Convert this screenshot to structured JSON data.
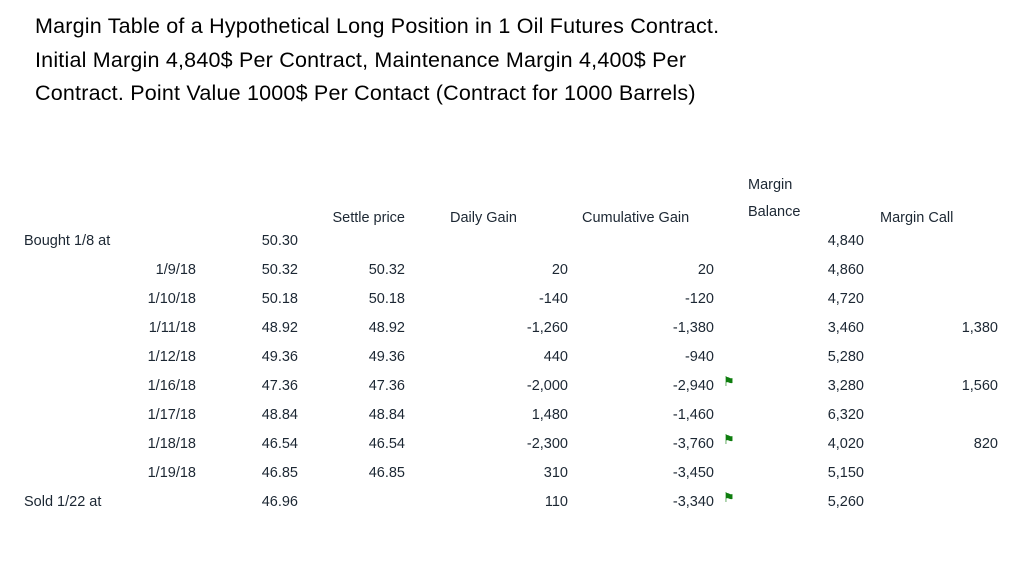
{
  "title": {
    "line1": "Margin Table of a Hypothetical Long Position in 1 Oil Futures Contract.",
    "line2": "Initial Margin 4,840$ Per Contract, Maintenance Margin 4,400$ Per",
    "line3": "Contract. Point Value 1000$ Per Contact (Contract for 1000 Barrels)"
  },
  "table": {
    "headers": {
      "settle_price": "Settle price",
      "daily_gain": "Daily Gain",
      "cumulative_gain": "Cumulative Gain",
      "margin_balance_line1": "Margin",
      "margin_balance_line2": "Balance",
      "margin_call": "Margin Call"
    },
    "rows": [
      {
        "label": "Bought 1/8 at",
        "price": "50.30",
        "settle": "",
        "daily": "",
        "cumulative": "",
        "flag": false,
        "balance": "4,840",
        "call": ""
      },
      {
        "label": "1/9/18",
        "price": "50.32",
        "settle": "50.32",
        "daily": "20",
        "cumulative": "20",
        "flag": false,
        "balance": "4,860",
        "call": ""
      },
      {
        "label": "1/10/18",
        "price": "50.18",
        "settle": "50.18",
        "daily": "-140",
        "cumulative": "-120",
        "flag": false,
        "balance": "4,720",
        "call": ""
      },
      {
        "label": "1/11/18",
        "price": "48.92",
        "settle": "48.92",
        "daily": "-1,260",
        "cumulative": "-1,380",
        "flag": false,
        "balance": "3,460",
        "call": "1,380"
      },
      {
        "label": "1/12/18",
        "price": "49.36",
        "settle": "49.36",
        "daily": "440",
        "cumulative": "-940",
        "flag": false,
        "balance": "5,280",
        "call": ""
      },
      {
        "label": "1/16/18",
        "price": "47.36",
        "settle": "47.36",
        "daily": "-2,000",
        "cumulative": "-2,940",
        "flag": true,
        "balance": "3,280",
        "call": "1,560"
      },
      {
        "label": "1/17/18",
        "price": "48.84",
        "settle": "48.84",
        "daily": "1,480",
        "cumulative": "-1,460",
        "flag": false,
        "balance": "6,320",
        "call": ""
      },
      {
        "label": "1/18/18",
        "price": "46.54",
        "settle": "46.54",
        "daily": "-2,300",
        "cumulative": "-3,760",
        "flag": true,
        "balance": "4,020",
        "call": "820"
      },
      {
        "label": "1/19/18",
        "price": "46.85",
        "settle": "46.85",
        "daily": "310",
        "cumulative": "-3,450",
        "flag": false,
        "balance": "5,150",
        "call": ""
      },
      {
        "label": "Sold 1/22 at",
        "price": "46.96",
        "settle": "",
        "daily": "110",
        "cumulative": "-3,340",
        "flag": true,
        "balance": "5,260",
        "call": ""
      }
    ]
  },
  "icons": {
    "flag_glyph": "⚑"
  },
  "colors": {
    "flag_green": "#0e7d0e",
    "table_text": "#1c2733",
    "title_text": "#000000"
  }
}
